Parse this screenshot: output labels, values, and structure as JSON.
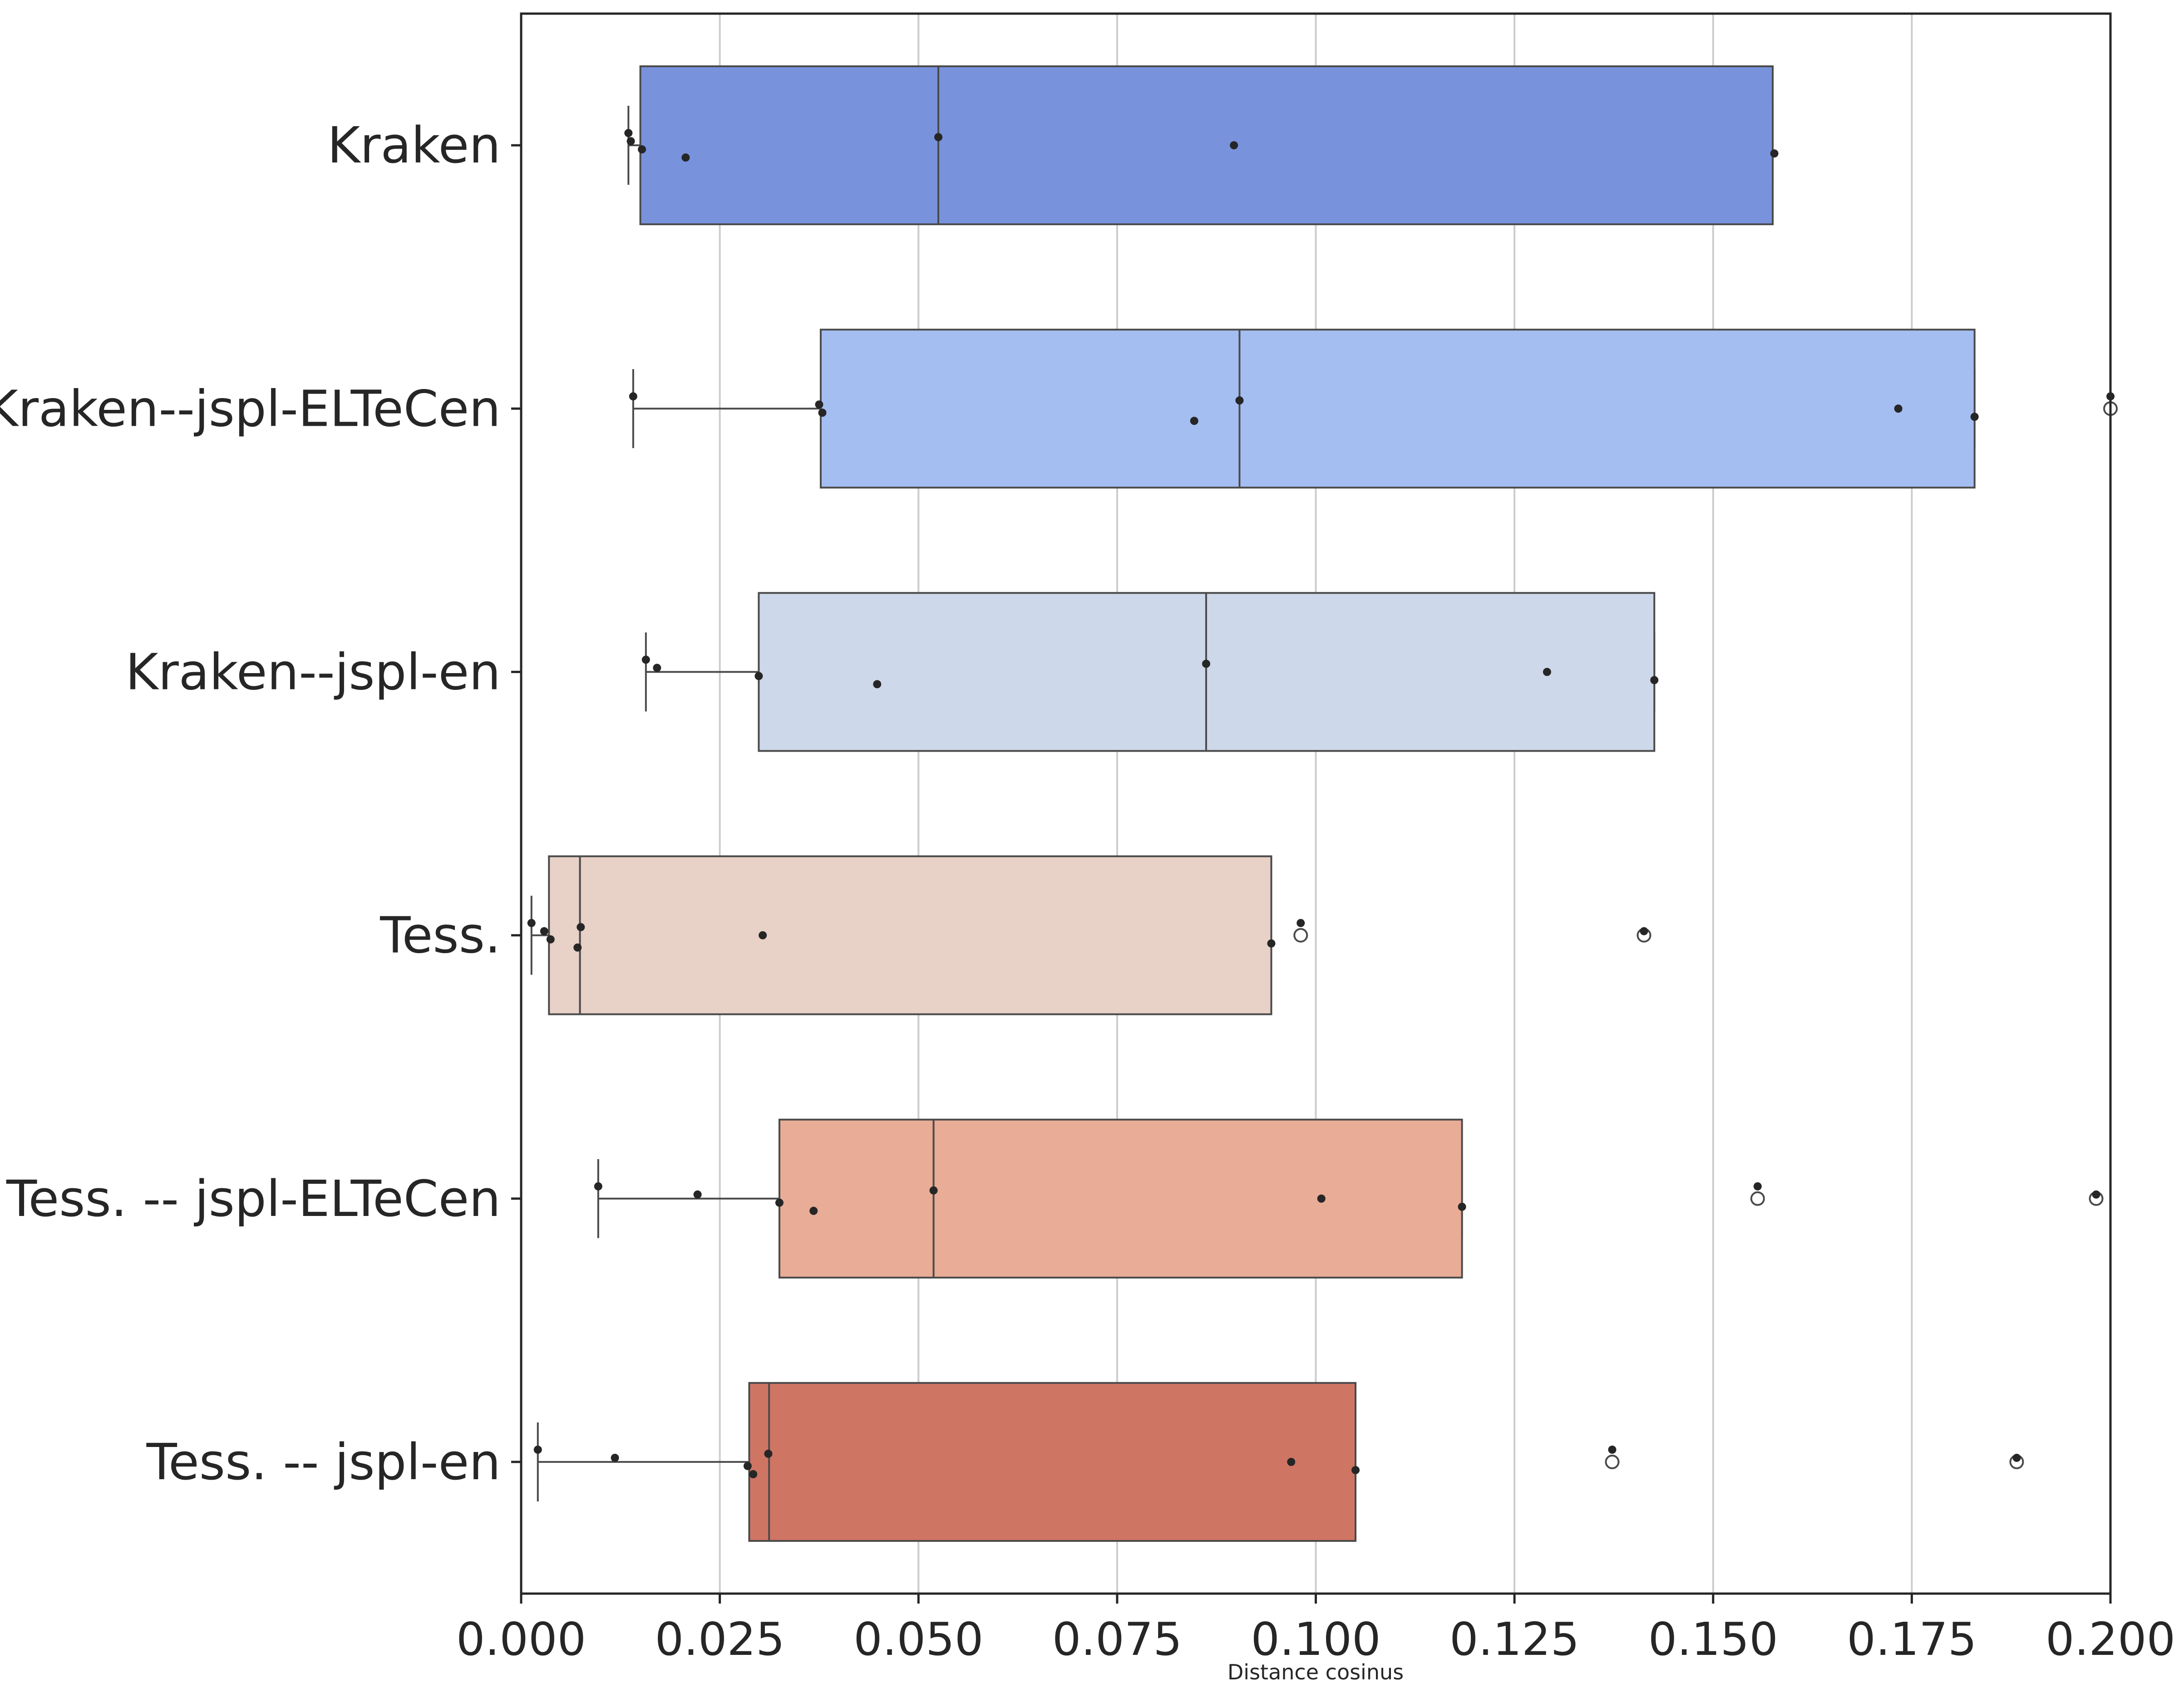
{
  "chart_data": {
    "type": "box",
    "orientation": "horizontal",
    "xlabel": "Distance cosinus",
    "ylabel": "",
    "xlim": [
      0.0,
      0.2
    ],
    "xticks": [
      "0.000",
      "0.025",
      "0.050",
      "0.075",
      "0.100",
      "0.125",
      "0.150",
      "0.175",
      "0.200"
    ],
    "grid": "vertical",
    "series": [
      {
        "name": "Kraken",
        "color": "#7892DC",
        "box": {
          "whislo": 0.0135,
          "q1": 0.015,
          "med": 0.0525,
          "q3": 0.1575,
          "whishi": 0.1575
        },
        "fliers": [],
        "points": [
          0.0135,
          0.0138,
          0.0152,
          0.0207,
          0.0525,
          0.0897,
          0.1577
        ]
      },
      {
        "name": "Kraken--jspl-ELTeCen",
        "color": "#A5BEF1",
        "box": {
          "whislo": 0.0141,
          "q1": 0.0377,
          "med": 0.0904,
          "q3": 0.1829,
          "whishi": 0.1829
        },
        "fliers": [
          0.2
        ],
        "points": [
          0.0141,
          0.0375,
          0.0379,
          0.0847,
          0.0904,
          0.1733,
          0.1829,
          0.2
        ]
      },
      {
        "name": "Kraken--jspl-en",
        "color": "#CDD8EA",
        "box": {
          "whislo": 0.0157,
          "q1": 0.0299,
          "med": 0.0862,
          "q3": 0.1426,
          "whishi": 0.1426
        },
        "fliers": [],
        "points": [
          0.0157,
          0.0171,
          0.0299,
          0.0448,
          0.0862,
          0.1291,
          0.1426
        ]
      },
      {
        "name": "Tess.",
        "color": "#E8D1C7",
        "box": {
          "whislo": 0.0013,
          "q1": 0.0035,
          "med": 0.0074,
          "q3": 0.0944,
          "whishi": 0.0944
        },
        "fliers": [
          0.0981,
          0.1413
        ],
        "points": [
          0.0013,
          0.0029,
          0.0037,
          0.0071,
          0.0075,
          0.0304,
          0.0944,
          0.0981,
          0.1413
        ]
      },
      {
        "name": "Tess. -- jspl-ELTeCen",
        "color": "#E9AC96",
        "box": {
          "whislo": 0.0097,
          "q1": 0.0325,
          "med": 0.0519,
          "q3": 0.1184,
          "whishi": 0.1184
        },
        "fliers": [
          0.1556,
          0.1982
        ],
        "points": [
          0.0097,
          0.0222,
          0.0325,
          0.0368,
          0.0519,
          0.1007,
          0.1184,
          0.1556,
          0.1982
        ]
      },
      {
        "name": "Tess. -- jspl-en",
        "color": "#CF7564",
        "box": {
          "whislo": 0.0021,
          "q1": 0.0287,
          "med": 0.0312,
          "q3": 0.105,
          "whishi": 0.105
        },
        "fliers": [
          0.1373,
          0.1882
        ],
        "points": [
          0.0021,
          0.0118,
          0.0285,
          0.0292,
          0.0311,
          0.0969,
          0.105,
          0.1373,
          0.1882
        ]
      }
    ]
  }
}
